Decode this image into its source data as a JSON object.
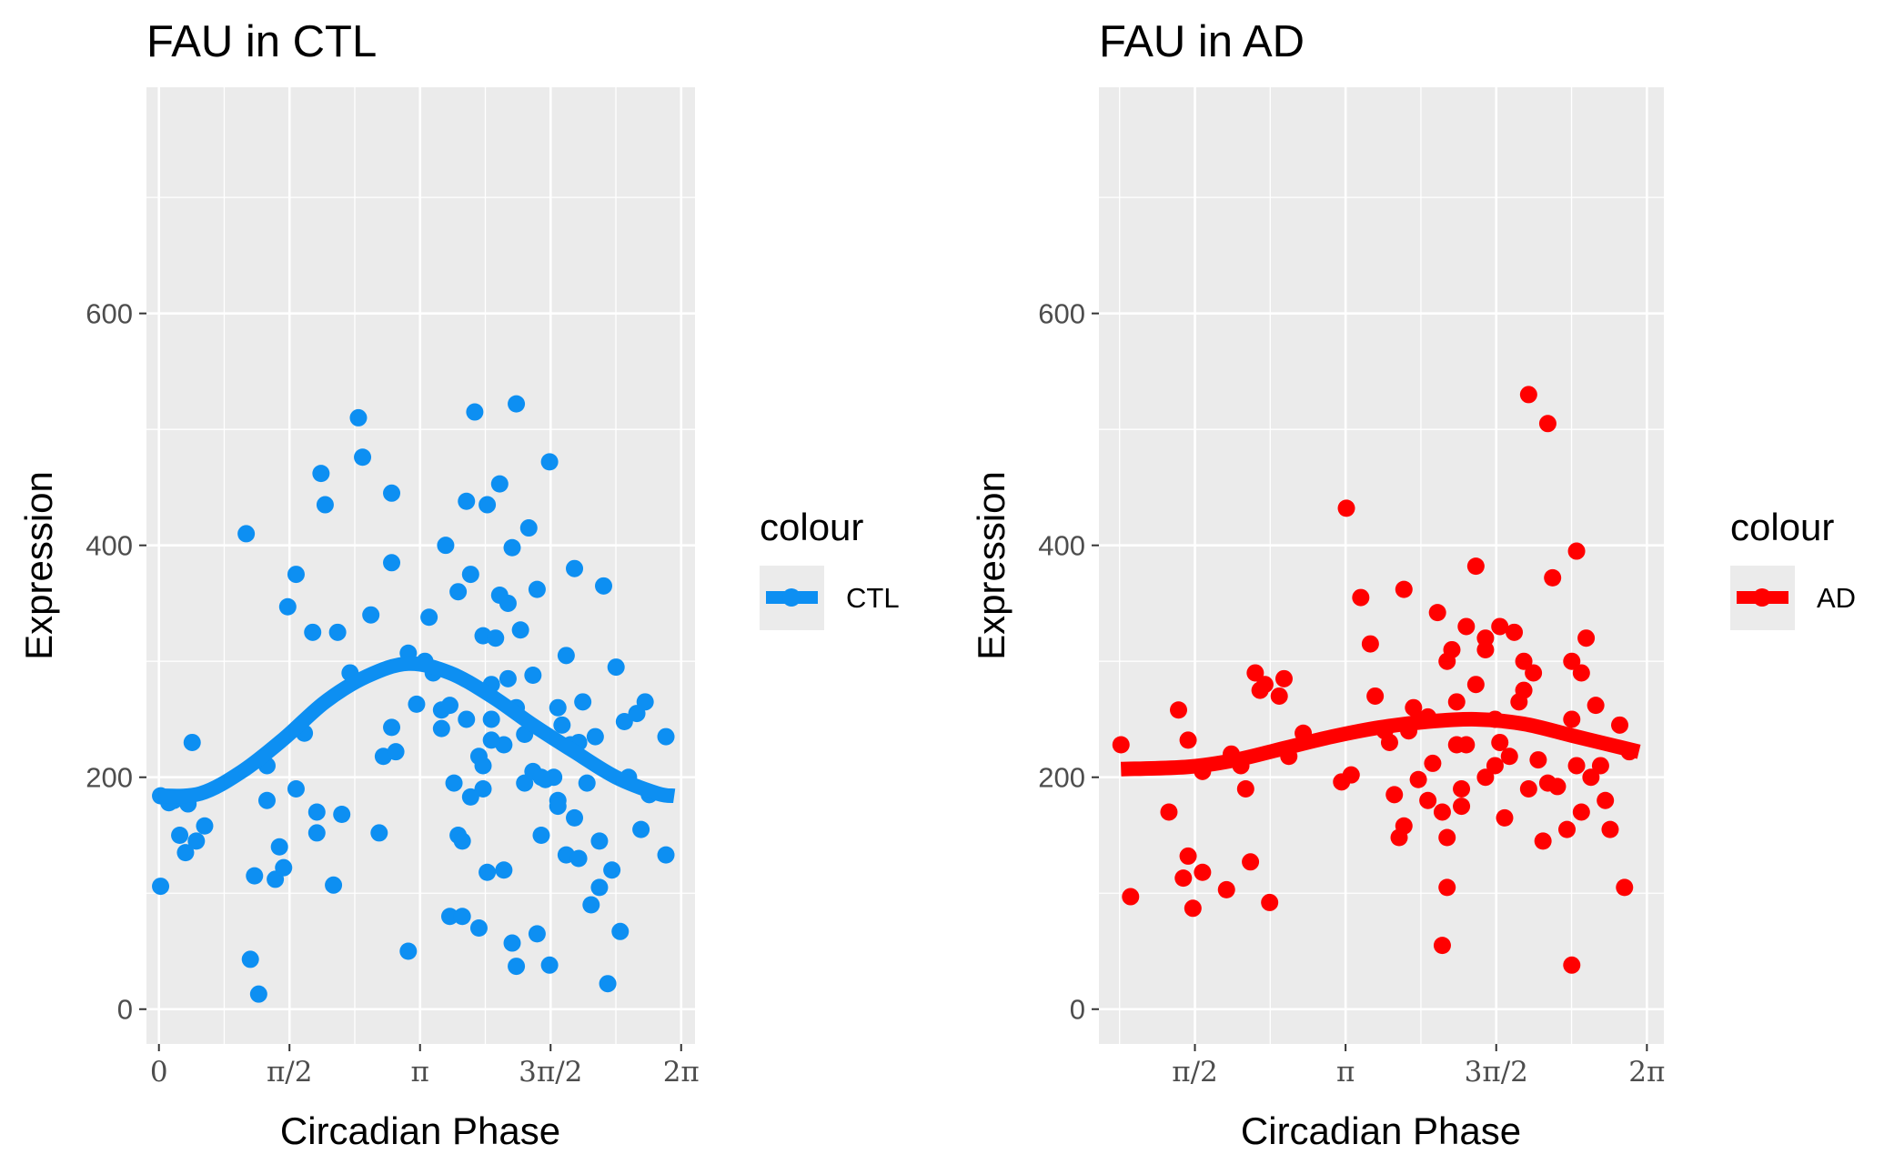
{
  "chart_data": [
    {
      "type": "scatter",
      "title": "FAU in CTL",
      "xlabel": "Circadian Phase",
      "ylabel": "Expression",
      "xlim": [
        -0.15,
        6.45
      ],
      "ylim": [
        -30,
        795
      ],
      "x_ticks": [
        {
          "value": 0,
          "label": "0"
        },
        {
          "value": 1.5708,
          "label": "π/2"
        },
        {
          "value": 3.1416,
          "label": "π"
        },
        {
          "value": 4.7124,
          "label": "3π/2"
        },
        {
          "value": 6.2832,
          "label": "2π"
        }
      ],
      "y_ticks": [
        {
          "value": 0,
          "label": "0"
        },
        {
          "value": 200,
          "label": "200"
        },
        {
          "value": 400,
          "label": "400"
        },
        {
          "value": 600,
          "label": "600"
        }
      ],
      "grid": true,
      "legend": {
        "title": "colour",
        "position": "right",
        "entries": [
          {
            "label": "CTL",
            "color": "#0d8ff2"
          }
        ]
      },
      "series": [
        {
          "name": "CTL",
          "color": "#0d8ff2",
          "points": [
            [
              0.02,
              106
            ],
            [
              0.02,
              184
            ],
            [
              0.12,
              178
            ],
            [
              0.18,
              180
            ],
            [
              0.32,
              135
            ],
            [
              0.35,
              177
            ],
            [
              0.55,
              158
            ],
            [
              0.4,
              230
            ],
            [
              0.45,
              145
            ],
            [
              0.25,
              150
            ],
            [
              1.05,
              410
            ],
            [
              1.1,
              43
            ],
            [
              1.15,
              115
            ],
            [
              1.2,
              13
            ],
            [
              1.3,
              210
            ],
            [
              1.4,
              112
            ],
            [
              1.45,
              140
            ],
            [
              1.5,
              122
            ],
            [
              1.55,
              347
            ],
            [
              1.65,
              190
            ],
            [
              1.65,
              375
            ],
            [
              1.75,
              238
            ],
            [
              1.85,
              325
            ],
            [
              1.9,
              152
            ],
            [
              1.9,
              170
            ],
            [
              1.95,
              462
            ],
            [
              2.0,
              435
            ],
            [
              2.1,
              107
            ],
            [
              2.15,
              325
            ],
            [
              2.2,
              168
            ],
            [
              2.4,
              510
            ],
            [
              2.45,
              476
            ],
            [
              2.55,
              340
            ],
            [
              2.65,
              152
            ],
            [
              2.7,
              218
            ],
            [
              2.8,
              445
            ],
            [
              2.8,
              385
            ],
            [
              2.8,
              243
            ],
            [
              2.85,
              222
            ],
            [
              3.0,
              50
            ],
            [
              3.0,
              307
            ],
            [
              3.25,
              338
            ],
            [
              3.4,
              242
            ],
            [
              3.4,
              258
            ],
            [
              3.45,
              400
            ],
            [
              3.5,
              80
            ],
            [
              3.55,
              195
            ],
            [
              3.6,
              360
            ],
            [
              3.6,
              150
            ],
            [
              3.65,
              80
            ],
            [
              3.65,
              145
            ],
            [
              3.7,
              438
            ],
            [
              3.7,
              250
            ],
            [
              3.75,
              183
            ],
            [
              3.75,
              375
            ],
            [
              3.8,
              515
            ],
            [
              3.85,
              218
            ],
            [
              3.85,
              70
            ],
            [
              3.9,
              322
            ],
            [
              3.9,
              210
            ],
            [
              3.95,
              118
            ],
            [
              3.95,
              435
            ],
            [
              4.0,
              280
            ],
            [
              4.05,
              320
            ],
            [
              4.1,
              453
            ],
            [
              4.1,
              357
            ],
            [
              4.15,
              228
            ],
            [
              4.15,
              120
            ],
            [
              4.2,
              350
            ],
            [
              4.25,
              57
            ],
            [
              4.25,
              398
            ],
            [
              4.3,
              37
            ],
            [
              4.3,
              522
            ],
            [
              4.35,
              327
            ],
            [
              4.4,
              237
            ],
            [
              4.4,
              195
            ],
            [
              4.45,
              415
            ],
            [
              4.5,
              288
            ],
            [
              4.55,
              362
            ],
            [
              4.55,
              65
            ],
            [
              4.6,
              150
            ],
            [
              4.65,
              198
            ],
            [
              4.7,
              472
            ],
            [
              4.7,
              38
            ],
            [
              4.75,
              200
            ],
            [
              4.8,
              260
            ],
            [
              4.8,
              180
            ],
            [
              4.85,
              245
            ],
            [
              4.9,
              305
            ],
            [
              4.9,
              133
            ],
            [
              4.95,
              228
            ],
            [
              5.0,
              380
            ],
            [
              5.05,
              230
            ],
            [
              5.05,
              130
            ],
            [
              5.1,
              265
            ],
            [
              5.15,
              195
            ],
            [
              5.2,
              90
            ],
            [
              5.25,
              235
            ],
            [
              5.3,
              105
            ],
            [
              5.35,
              365
            ],
            [
              5.4,
              22
            ],
            [
              5.45,
              120
            ],
            [
              5.5,
              295
            ],
            [
              5.55,
              67
            ],
            [
              5.6,
              248
            ],
            [
              5.65,
              200
            ],
            [
              5.75,
              255
            ],
            [
              5.8,
              155
            ],
            [
              5.85,
              265
            ],
            [
              5.9,
              185
            ],
            [
              6.1,
              235
            ],
            [
              6.1,
              133
            ],
            [
              3.2,
              300
            ],
            [
              3.3,
              290
            ],
            [
              3.5,
              262
            ],
            [
              4.0,
              232
            ],
            [
              4.0,
              250
            ],
            [
              4.2,
              285
            ],
            [
              4.5,
              205
            ],
            [
              4.6,
              200
            ],
            [
              4.8,
              175
            ],
            [
              5.3,
              145
            ],
            [
              1.3,
              180
            ],
            [
              2.3,
              290
            ],
            [
              3.1,
              263
            ],
            [
              3.9,
              190
            ],
            [
              4.3,
              260
            ],
            [
              5.0,
              165
            ]
          ],
          "fit": [
            [
              0,
              184
            ],
            [
              0.5,
              186
            ],
            [
              1.0,
              205
            ],
            [
              1.5,
              233
            ],
            [
              2.0,
              265
            ],
            [
              2.5,
              287
            ],
            [
              3.0,
              298
            ],
            [
              3.5,
              290
            ],
            [
              4.0,
              270
            ],
            [
              4.5,
              245
            ],
            [
              5.0,
              222
            ],
            [
              5.5,
              200
            ],
            [
              6.0,
              186
            ],
            [
              6.2,
              184
            ]
          ]
        }
      ]
    },
    {
      "type": "scatter",
      "title": "FAU in AD",
      "xlabel": "Circadian Phase",
      "ylabel": "Expression",
      "xlim": [
        0.57,
        6.46
      ],
      "ylim": [
        -30,
        795
      ],
      "x_ticks": [
        {
          "value": 1.5708,
          "label": "π/2"
        },
        {
          "value": 3.1416,
          "label": "π"
        },
        {
          "value": 4.7124,
          "label": "3π/2"
        },
        {
          "value": 6.2832,
          "label": "2π"
        }
      ],
      "y_ticks": [
        {
          "value": 0,
          "label": "0"
        },
        {
          "value": 200,
          "label": "200"
        },
        {
          "value": 400,
          "label": "400"
        },
        {
          "value": 600,
          "label": "600"
        }
      ],
      "grid": true,
      "legend": {
        "title": "colour",
        "position": "right",
        "entries": [
          {
            "label": "AD",
            "color": "#ff0000"
          }
        ]
      },
      "series": [
        {
          "name": "AD",
          "color": "#ff0000",
          "points": [
            [
              0.8,
              228
            ],
            [
              0.9,
              97
            ],
            [
              1.3,
              170
            ],
            [
              1.4,
              258
            ],
            [
              1.45,
              113
            ],
            [
              1.5,
              232
            ],
            [
              1.5,
              132
            ],
            [
              1.55,
              87
            ],
            [
              1.65,
              118
            ],
            [
              1.65,
              205
            ],
            [
              1.9,
              103
            ],
            [
              1.95,
              220
            ],
            [
              2.05,
              210
            ],
            [
              2.1,
              190
            ],
            [
              2.15,
              127
            ],
            [
              2.2,
              290
            ],
            [
              2.25,
              275
            ],
            [
              2.3,
              280
            ],
            [
              2.35,
              92
            ],
            [
              2.45,
              270
            ],
            [
              2.5,
              285
            ],
            [
              2.55,
              218
            ],
            [
              2.7,
              238
            ],
            [
              3.1,
              196
            ],
            [
              3.15,
              432
            ],
            [
              3.2,
              202
            ],
            [
              3.3,
              355
            ],
            [
              3.4,
              315
            ],
            [
              3.45,
              270
            ],
            [
              3.6,
              230
            ],
            [
              3.65,
              185
            ],
            [
              3.7,
              148
            ],
            [
              3.75,
              158
            ],
            [
              3.75,
              362
            ],
            [
              3.85,
              260
            ],
            [
              3.9,
              198
            ],
            [
              4.0,
              252
            ],
            [
              4.05,
              212
            ],
            [
              4.1,
              342
            ],
            [
              4.15,
              55
            ],
            [
              4.15,
              170
            ],
            [
              4.2,
              148
            ],
            [
              4.2,
              105
            ],
            [
              4.25,
              310
            ],
            [
              4.3,
              265
            ],
            [
              4.35,
              175
            ],
            [
              4.35,
              190
            ],
            [
              4.4,
              330
            ],
            [
              4.5,
              382
            ],
            [
              4.5,
              280
            ],
            [
              4.6,
              200
            ],
            [
              4.6,
              310
            ],
            [
              4.7,
              250
            ],
            [
              4.7,
              210
            ],
            [
              4.75,
              230
            ],
            [
              4.75,
              330
            ],
            [
              4.8,
              165
            ],
            [
              4.85,
              218
            ],
            [
              4.9,
              325
            ],
            [
              4.95,
              265
            ],
            [
              5.0,
              275
            ],
            [
              5.05,
              530
            ],
            [
              5.05,
              190
            ],
            [
              5.1,
              290
            ],
            [
              5.15,
              215
            ],
            [
              5.2,
              145
            ],
            [
              5.25,
              505
            ],
            [
              5.25,
              195
            ],
            [
              5.3,
              372
            ],
            [
              5.35,
              192
            ],
            [
              5.45,
              155
            ],
            [
              5.5,
              300
            ],
            [
              5.5,
              250
            ],
            [
              5.55,
              395
            ],
            [
              5.55,
              210
            ],
            [
              5.6,
              290
            ],
            [
              5.6,
              170
            ],
            [
              5.65,
              320
            ],
            [
              5.7,
              200
            ],
            [
              5.75,
              262
            ],
            [
              5.8,
              210
            ],
            [
              5.85,
              180
            ],
            [
              5.9,
              155
            ],
            [
              6.0,
              245
            ],
            [
              6.05,
              105
            ],
            [
              6.1,
              222
            ],
            [
              5.5,
              38
            ],
            [
              4.3,
              228
            ],
            [
              3.55,
              240
            ],
            [
              3.8,
              240
            ],
            [
              4.0,
              180
            ],
            [
              4.4,
              228
            ],
            [
              4.6,
              320
            ],
            [
              5.0,
              300
            ],
            [
              4.2,
              300
            ],
            [
              3.9,
              250
            ]
          ],
          "fit": [
            [
              0.8,
              207
            ],
            [
              1.5,
              209
            ],
            [
              2.0,
              215
            ],
            [
              2.5,
              225
            ],
            [
              3.0,
              235
            ],
            [
              3.5,
              243
            ],
            [
              4.0,
              248
            ],
            [
              4.5,
              250
            ],
            [
              5.0,
              246
            ],
            [
              5.5,
              236
            ],
            [
              6.0,
              226
            ],
            [
              6.2,
              222
            ]
          ]
        }
      ]
    }
  ]
}
